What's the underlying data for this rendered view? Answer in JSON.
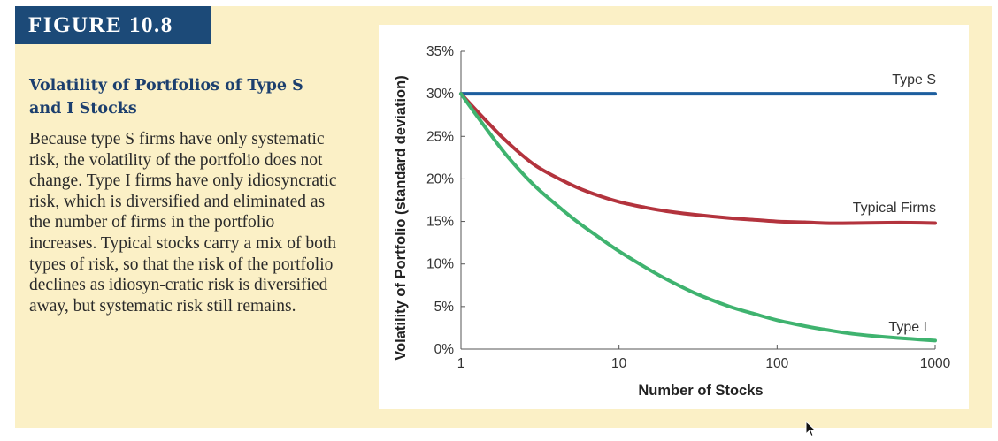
{
  "figure": {
    "label": "FIGURE 10.8",
    "title": "Volatility of Portfolios of Type S and I Stocks",
    "body": "Because type S firms have only systematic risk, the volatility of the portfolio does not change. Type I firms have only idiosyncratic risk, which is diversified and eliminated as the number of firms in the portfolio increases. Typical stocks carry a mix of both types of risk, so that the risk of the portfolio declines as idiosyn-cratic risk is diversified away, but systematic risk still remains."
  },
  "colors": {
    "badge": "#1c4a78",
    "panel": "#fbf0c6",
    "type_s": "#1c5e9e",
    "typical": "#b3333d",
    "type_i": "#3fb36f"
  },
  "chart_data": {
    "type": "line",
    "xlabel": "Number of Stocks",
    "ylabel": "Volatility of Portfolio (standard deviation)",
    "x_scale": "log",
    "xlim": [
      1,
      1000
    ],
    "ylim": [
      0,
      35
    ],
    "x_ticks": [
      "1",
      "10",
      "100",
      "1000"
    ],
    "x_tick_values": [
      1,
      10,
      100,
      1000
    ],
    "y_ticks": [
      "0%",
      "5%",
      "10%",
      "15%",
      "20%",
      "25%",
      "30%",
      "35%"
    ],
    "y_tick_values": [
      0,
      5,
      10,
      15,
      20,
      25,
      30,
      35
    ],
    "grid": false,
    "series": [
      {
        "name": "Type S",
        "color": "#1c5e9e",
        "x": [
          1,
          2,
          5,
          10,
          20,
          50,
          100,
          200,
          500,
          1000
        ],
        "y": [
          30,
          30,
          30,
          30,
          30,
          30,
          30,
          30,
          30,
          30
        ]
      },
      {
        "name": "Typical Firms",
        "color": "#b3333d",
        "x": [
          1,
          1.5,
          2,
          3,
          5,
          7,
          10,
          15,
          20,
          30,
          50,
          70,
          100,
          150,
          200,
          300,
          500,
          700,
          1000
        ],
        "y": [
          30,
          26.5,
          24.2,
          21.5,
          19.3,
          18.2,
          17.3,
          16.6,
          16.2,
          15.8,
          15.4,
          15.2,
          15.0,
          14.9,
          14.8,
          14.8,
          14.85,
          14.85,
          14.8
        ]
      },
      {
        "name": "Type I",
        "color": "#3fb36f",
        "x": [
          1,
          1.5,
          2,
          3,
          5,
          7,
          10,
          15,
          20,
          30,
          50,
          70,
          100,
          150,
          200,
          300,
          500,
          700,
          1000
        ],
        "y": [
          30,
          25.5,
          22.5,
          19.0,
          15.5,
          13.5,
          11.5,
          9.5,
          8.2,
          6.6,
          5.0,
          4.2,
          3.4,
          2.7,
          2.3,
          1.8,
          1.4,
          1.2,
          1.0
        ]
      }
    ]
  }
}
